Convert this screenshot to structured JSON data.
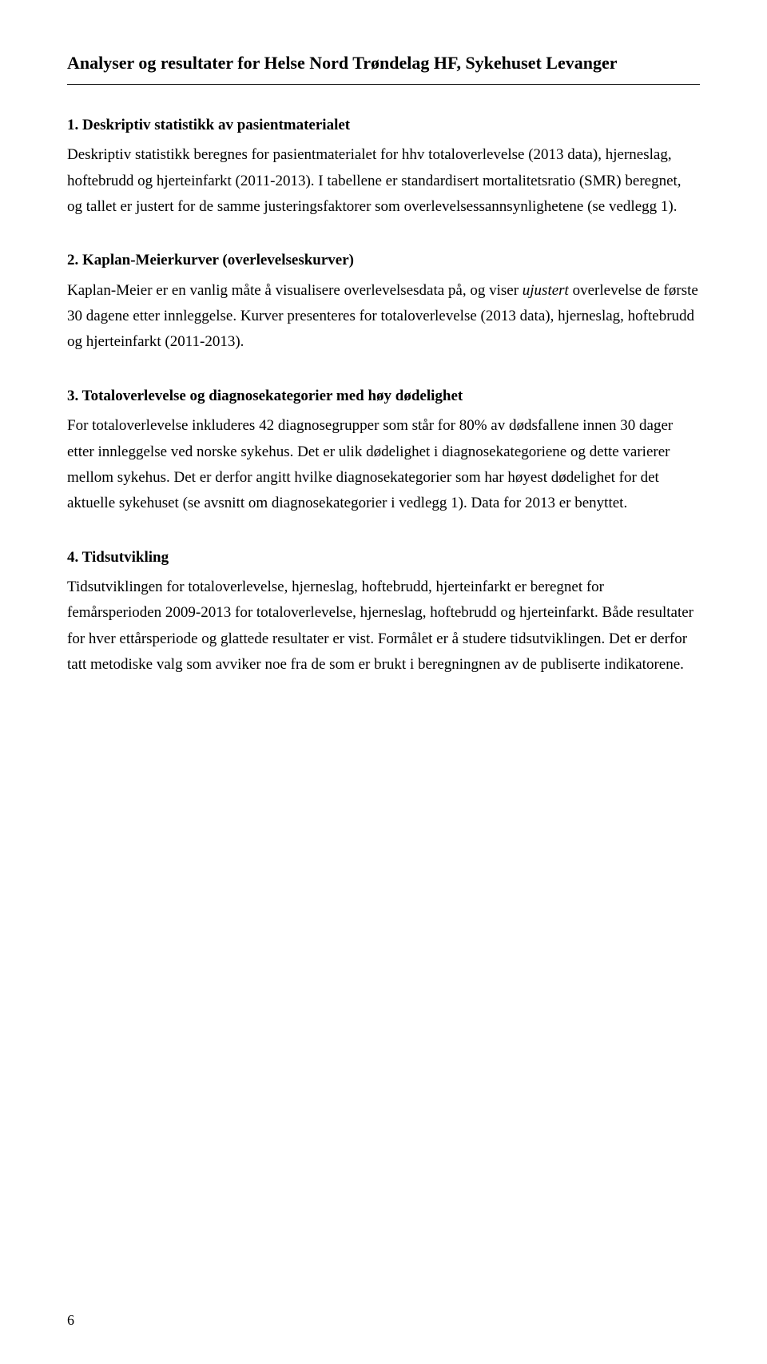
{
  "document": {
    "title": "Analyser og resultater for Helse Nord Trøndelag HF, Sykehuset Levanger",
    "page_number": "6",
    "sections": [
      {
        "heading": "1. Deskriptiv statistikk av pasientmaterialet",
        "body_pre": "Deskriptiv statistikk beregnes for pasientmaterialet for hhv totaloverlevelse (2013 data), hjerneslag, hoftebrudd og hjerteinfarkt (2011-2013). I tabellene er standardisert mortalitetsratio (SMR) beregnet, og tallet er justert for de samme justeringsfaktorer som overlevelsessannsynlighetene (se vedlegg 1)."
      },
      {
        "heading": "2. Kaplan-Meierkurver (overlevelseskurver)",
        "body_pre": "Kaplan-Meier er en vanlig måte å visualisere overlevelsesdata på, og viser ",
        "body_ital": "ujustert",
        "body_post": " overlevelse de første 30 dagene etter innleggelse. Kurver presenteres for totaloverlevelse (2013 data), hjerneslag, hoftebrudd og hjerteinfarkt (2011-2013)."
      },
      {
        "heading": "3. Totaloverlevelse og diagnosekategorier med høy dødelighet",
        "body_pre": "For totaloverlevelse inkluderes 42 diagnosegrupper som står for 80% av dødsfallene innen 30 dager etter innleggelse ved norske sykehus. Det er ulik dødelighet i diagnosekategoriene og dette varierer mellom sykehus. Det er derfor angitt hvilke diagnosekategorier som har høyest dødelighet for det aktuelle sykehuset (se avsnitt om diagnosekategorier i vedlegg 1). Data for 2013 er benyttet."
      },
      {
        "heading": "4. Tidsutvikling",
        "body_pre": "Tidsutviklingen for totaloverlevelse, hjerneslag, hoftebrudd, hjerteinfarkt er beregnet for femårsperioden 2009-2013 for totaloverlevelse, hjerneslag, hoftebrudd og hjerteinfarkt. Både resultater for hver ettårsperiode og glattede resultater er vist. Formålet er å studere tidsutviklingen. Det er derfor tatt metodiske valg som avviker noe fra de som er brukt i beregningnen av de publiserte indikatorene."
      }
    ]
  }
}
